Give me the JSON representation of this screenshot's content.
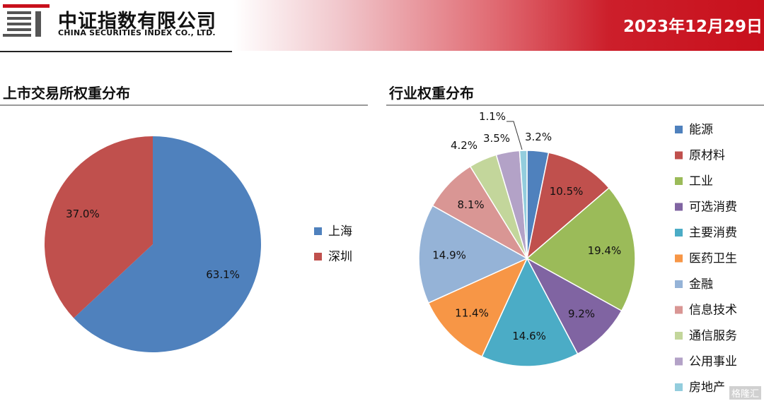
{
  "header": {
    "company_cn": "中证指数有限公司",
    "company_en": "CHINA SECURITIES INDEX CO., LTD.",
    "date": "2023年12月29日",
    "logo_icon": "csi-logo-icon"
  },
  "colors": {
    "header_red": "#c8101c",
    "blue": "#4f81bd",
    "red": "#c0504d",
    "green": "#9bbb59",
    "purple": "#8064a2",
    "teal": "#4bacc6",
    "orange": "#f79646",
    "light_blue": "#95b3d7",
    "pink": "#d99694",
    "light_green": "#c3d69b",
    "lavender": "#b3a2c7",
    "pale_blue": "#93cddd"
  },
  "watermark": "格隆汇",
  "chart_data": [
    {
      "type": "pie",
      "title": "上市交易所权重分布",
      "categories": [
        "上海",
        "深圳"
      ],
      "values": [
        63.1,
        37.0
      ],
      "labels": [
        "63.1%",
        "37.0%"
      ],
      "colors": [
        "#4f81bd",
        "#c0504d"
      ],
      "legend": "right"
    },
    {
      "type": "pie",
      "title": "行业权重分布",
      "categories": [
        "能源",
        "原材料",
        "工业",
        "可选消费",
        "主要消费",
        "医药卫生",
        "金融",
        "信息技术",
        "通信服务",
        "公用事业",
        "房地产"
      ],
      "values": [
        3.2,
        10.5,
        19.4,
        9.2,
        14.6,
        11.4,
        14.9,
        8.1,
        4.2,
        3.5,
        1.1
      ],
      "labels": [
        "3.2%",
        "10.5%",
        "19.4%",
        "9.2%",
        "14.6%",
        "11.4%",
        "14.9%",
        "8.1%",
        "4.2%",
        "3.5%",
        "1.1%"
      ],
      "colors": [
        "#4f81bd",
        "#c0504d",
        "#9bbb59",
        "#8064a2",
        "#4bacc6",
        "#f79646",
        "#95b3d7",
        "#d99694",
        "#c3d69b",
        "#b3a2c7",
        "#93cddd"
      ],
      "legend": "right"
    }
  ]
}
